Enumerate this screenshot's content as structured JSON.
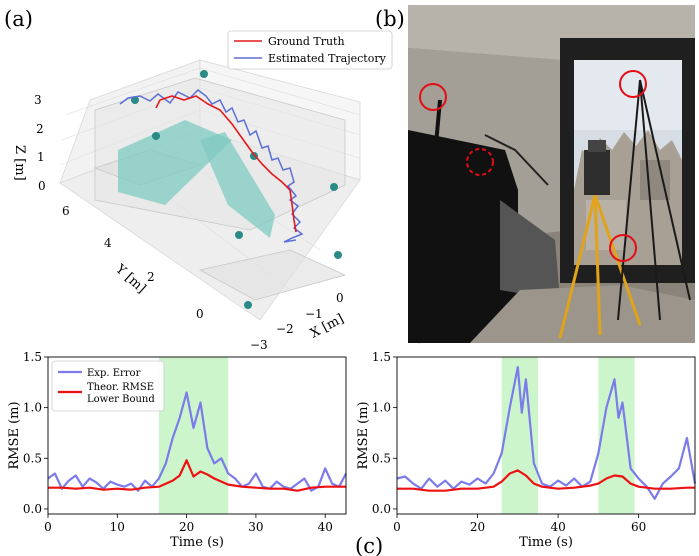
{
  "panel_labels": {
    "a": "(a)",
    "b": "(b)",
    "c": "(c)"
  },
  "colors": {
    "ground_truth": "#e31a1c",
    "estimated": "#5b6fd6",
    "anchor": "#2a8a86",
    "plane": "#7fc9c2",
    "exp_error": "#7b7bea",
    "bound": "#ee1111",
    "shade": "#ccf5cc",
    "marker_circle": "#e30d16"
  },
  "chart_data": [
    {
      "type": "line",
      "projection": "3d",
      "legend": {
        "position": "top-right",
        "entries": [
          "Ground Truth",
          "Estimated Trajectory"
        ]
      },
      "series": [
        {
          "name": "Ground Truth"
        },
        {
          "name": "Estimated Trajectory"
        }
      ],
      "axes": {
        "x": {
          "label": "X [m]",
          "ticks": [
            "0",
            "−1",
            "−2",
            "−3"
          ]
        },
        "y": {
          "label": "Y [m]",
          "ticks": [
            "0",
            "2",
            "4",
            "6"
          ]
        },
        "z": {
          "label": "Z [m]",
          "ticks": [
            "0",
            "1",
            "2",
            "3"
          ]
        }
      }
    },
    {
      "type": "line",
      "legend": {
        "position": "top-left",
        "entries": [
          "Exp. Error",
          "Theor. RMSE\nLower Bound"
        ]
      },
      "xlabel": "Time (s)",
      "ylabel": "RMSE (m)",
      "xlim": [
        0,
        43
      ],
      "ylim": [
        -0.05,
        1.5
      ],
      "xticks": [
        "0",
        "10",
        "20",
        "30",
        "40"
      ],
      "yticks": [
        "0.0",
        "0.5",
        "1.0",
        "1.5"
      ],
      "shaded_ranges": [
        [
          16,
          26
        ]
      ],
      "series": [
        {
          "name": "Exp. Error",
          "x": [
            0,
            1,
            2,
            3,
            4,
            5,
            6,
            7,
            8,
            9,
            10,
            11,
            12,
            13,
            14,
            15,
            16,
            17,
            18,
            19,
            20,
            21,
            22,
            23,
            24,
            25,
            26,
            27,
            28,
            29,
            30,
            31,
            32,
            33,
            34,
            35,
            36,
            37,
            38,
            39,
            40,
            41,
            42,
            43
          ],
          "values": [
            0.3,
            0.35,
            0.2,
            0.28,
            0.33,
            0.22,
            0.3,
            0.26,
            0.2,
            0.27,
            0.24,
            0.22,
            0.25,
            0.18,
            0.28,
            0.22,
            0.3,
            0.45,
            0.7,
            0.9,
            1.15,
            0.8,
            1.05,
            0.6,
            0.45,
            0.5,
            0.35,
            0.3,
            0.22,
            0.25,
            0.35,
            0.22,
            0.2,
            0.27,
            0.22,
            0.2,
            0.25,
            0.3,
            0.18,
            0.22,
            0.4,
            0.25,
            0.22,
            0.35
          ]
        },
        {
          "name": "Theor. RMSE\nLower Bound",
          "x": [
            0,
            2,
            4,
            6,
            8,
            10,
            12,
            14,
            16,
            18,
            19,
            20,
            21,
            22,
            23,
            24,
            26,
            28,
            30,
            32,
            34,
            36,
            38,
            40,
            42,
            43
          ],
          "values": [
            0.21,
            0.21,
            0.2,
            0.21,
            0.19,
            0.2,
            0.19,
            0.21,
            0.22,
            0.28,
            0.33,
            0.48,
            0.32,
            0.37,
            0.34,
            0.3,
            0.24,
            0.22,
            0.21,
            0.2,
            0.2,
            0.18,
            0.21,
            0.22,
            0.22,
            0.22
          ]
        }
      ]
    },
    {
      "type": "line",
      "xlabel": "Time (s)",
      "ylabel": "RMSE (m)",
      "xlim": [
        0,
        74
      ],
      "ylim": [
        -0.05,
        1.5
      ],
      "xticks": [
        "0",
        "20",
        "40",
        "60"
      ],
      "yticks": [
        "0.0",
        "0.5",
        "1.0",
        "1.5"
      ],
      "shaded_ranges": [
        [
          26,
          35
        ],
        [
          50,
          59
        ]
      ],
      "series": [
        {
          "name": "Exp. Error",
          "x": [
            0,
            2,
            4,
            6,
            8,
            10,
            12,
            14,
            16,
            18,
            20,
            22,
            24,
            26,
            28,
            30,
            31,
            32,
            34,
            36,
            38,
            40,
            42,
            44,
            46,
            48,
            50,
            52,
            54,
            55,
            56,
            58,
            60,
            62,
            64,
            66,
            68,
            70,
            72,
            74
          ],
          "values": [
            0.3,
            0.32,
            0.25,
            0.2,
            0.3,
            0.22,
            0.28,
            0.2,
            0.27,
            0.24,
            0.3,
            0.25,
            0.35,
            0.55,
            1.0,
            1.4,
            0.95,
            1.28,
            0.45,
            0.25,
            0.22,
            0.28,
            0.23,
            0.3,
            0.22,
            0.27,
            0.55,
            1.0,
            1.28,
            0.9,
            1.05,
            0.4,
            0.3,
            0.22,
            0.1,
            0.25,
            0.32,
            0.4,
            0.7,
            0.25
          ]
        },
        {
          "name": "Theor. RMSE\nLower Bound",
          "x": [
            0,
            4,
            8,
            12,
            16,
            20,
            24,
            26,
            28,
            30,
            32,
            34,
            36,
            40,
            44,
            48,
            50,
            52,
            54,
            56,
            58,
            60,
            64,
            68,
            72,
            74
          ],
          "values": [
            0.2,
            0.2,
            0.18,
            0.18,
            0.2,
            0.2,
            0.22,
            0.27,
            0.35,
            0.38,
            0.33,
            0.25,
            0.22,
            0.2,
            0.21,
            0.23,
            0.25,
            0.3,
            0.33,
            0.32,
            0.25,
            0.22,
            0.2,
            0.2,
            0.21,
            0.21
          ]
        }
      ]
    }
  ]
}
